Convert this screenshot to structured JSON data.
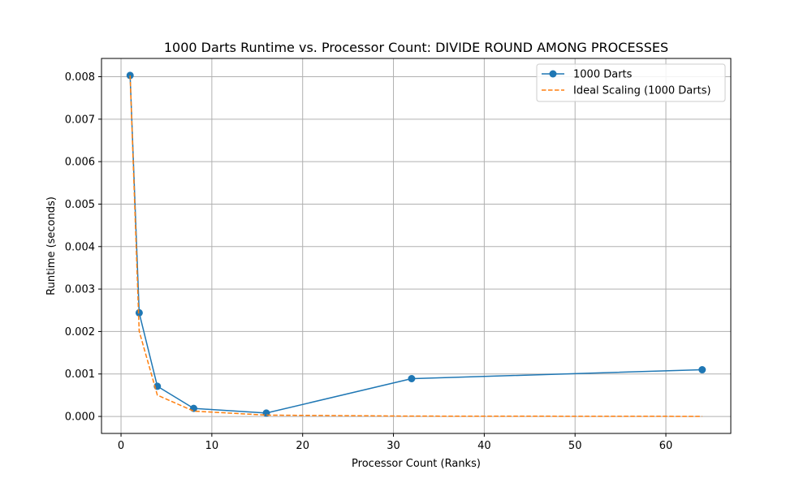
{
  "chart_data": {
    "type": "line",
    "title": "1000 Darts Runtime vs. Processor Count: DIVIDE ROUND AMONG PROCESSES",
    "xlabel": "Processor Count (Ranks)",
    "ylabel": "Runtime (seconds)",
    "xlim": [
      -2.15,
      67.15
    ],
    "ylim": [
      -0.0004,
      0.00843
    ],
    "xticks": [
      0,
      10,
      20,
      30,
      40,
      50,
      60
    ],
    "xtick_labels": [
      "0",
      "10",
      "20",
      "30",
      "40",
      "50",
      "60"
    ],
    "yticks": [
      0.0,
      0.001,
      0.002,
      0.003,
      0.004,
      0.005,
      0.006,
      0.007,
      0.008
    ],
    "ytick_labels": [
      "0.000",
      "0.001",
      "0.002",
      "0.003",
      "0.004",
      "0.005",
      "0.006",
      "0.007",
      "0.008"
    ],
    "grid": true,
    "legend_position": "top-right",
    "series": [
      {
        "name": "1000 Darts",
        "color": "#1f77b4",
        "style": "solid-with-markers",
        "x": [
          1,
          2,
          4,
          8,
          16,
          32,
          64
        ],
        "y": [
          0.00803,
          0.00244,
          0.00071,
          0.00019,
          8e-05,
          0.00089,
          0.0011
        ]
      },
      {
        "name": "Ideal Scaling (1000 Darts)",
        "color": "#ff7f0e",
        "style": "dashed",
        "x": [
          1,
          2,
          4,
          8,
          16,
          32,
          64
        ],
        "y": [
          0.00803,
          0.002008,
          0.000502,
          0.000125,
          3.13e-05,
          7.8e-06,
          2e-06
        ]
      }
    ]
  }
}
